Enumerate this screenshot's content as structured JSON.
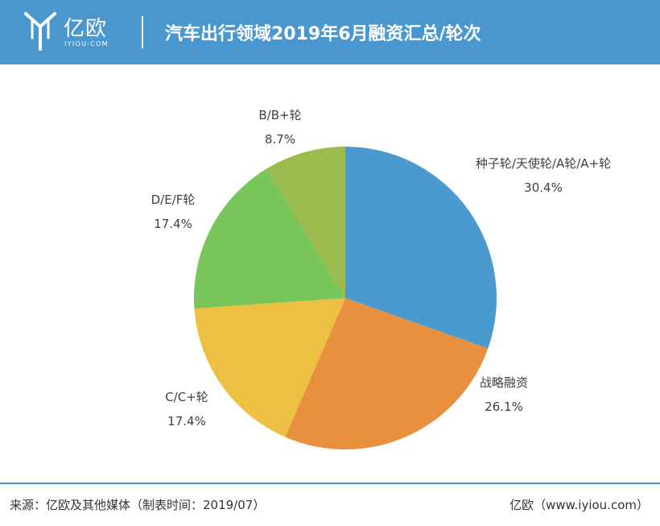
{
  "header": {
    "logo_text": "亿欧",
    "logo_sub": "IYIOU·COM",
    "title": "汽车出行领域2019年6月融资汇总/轮次"
  },
  "colors": {
    "header_bg": "#4a97cf",
    "slices": [
      "#4a9ad0",
      "#e8903d",
      "#ecc042",
      "#78c559",
      "#9bbb4e"
    ]
  },
  "chart_data": {
    "type": "pie",
    "categories": [
      "种子轮/天使轮/A轮/A+轮",
      "战略融资",
      "C/C+轮",
      "D/E/F轮",
      "B/B+轮"
    ],
    "values": [
      30.4,
      26.1,
      17.4,
      17.4,
      8.7
    ],
    "labels": [
      "30.4%",
      "26.1%",
      "17.4%",
      "17.4%",
      "8.7%"
    ]
  },
  "footer": {
    "source": "来源：亿欧及其他媒体（制表时间：2019/07）",
    "credit": "亿欧（www.iyiou.com）"
  }
}
